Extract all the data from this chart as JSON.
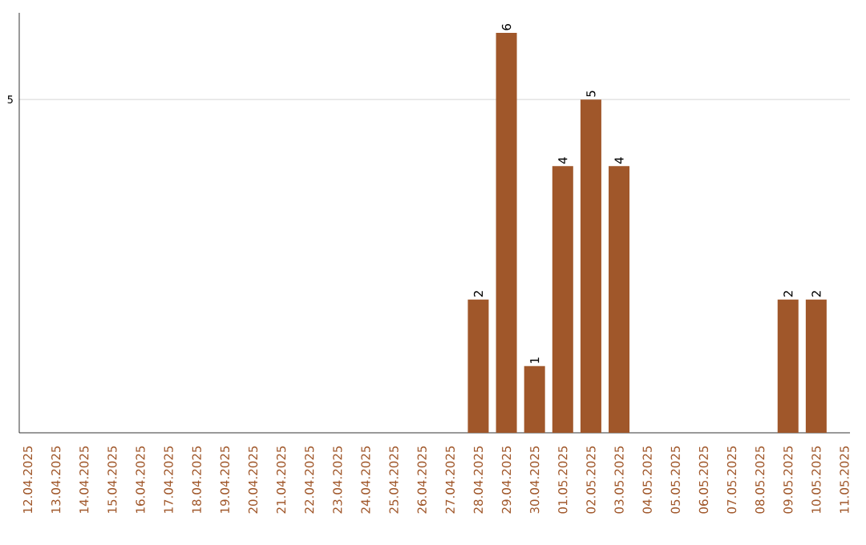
{
  "chart_data": {
    "type": "bar",
    "categories": [
      "12.04.2025",
      "13.04.2025",
      "14.04.2025",
      "15.04.2025",
      "16.04.2025",
      "17.04.2025",
      "18.04.2025",
      "19.04.2025",
      "20.04.2025",
      "21.04.2025",
      "22.04.2025",
      "23.04.2025",
      "24.04.2025",
      "25.04.2025",
      "26.04.2025",
      "27.04.2025",
      "28.04.2025",
      "29.04.2025",
      "30.04.2025",
      "01.05.2025",
      "02.05.2025",
      "03.05.2025",
      "04.05.2025",
      "05.05.2025",
      "06.05.2025",
      "07.05.2025",
      "08.05.2025",
      "09.05.2025",
      "10.05.2025",
      "11.05.2025"
    ],
    "values": [
      null,
      null,
      null,
      null,
      null,
      null,
      null,
      null,
      null,
      null,
      null,
      null,
      null,
      null,
      null,
      null,
      2,
      6,
      1,
      4,
      5,
      4,
      null,
      null,
      null,
      null,
      null,
      2,
      2,
      null
    ],
    "data_labels": true,
    "color": "#a0572a",
    "ylim": [
      0,
      6.3
    ],
    "yticks": [
      5
    ],
    "grid": "y"
  }
}
